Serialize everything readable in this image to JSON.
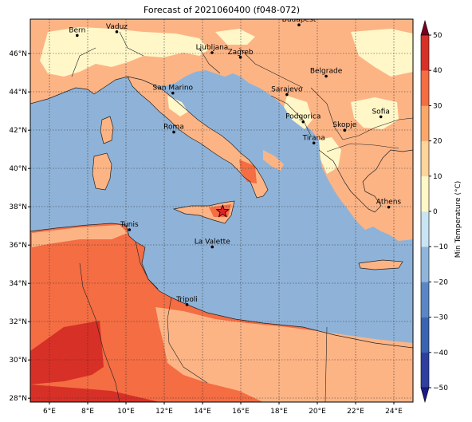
{
  "title": "Forecast of 2021060400 (f048-072)",
  "map": {
    "lon_ticks": [
      "6°E",
      "8°E",
      "10°E",
      "12°E",
      "14°E",
      "16°E",
      "18°E",
      "20°E",
      "22°E",
      "24°E"
    ],
    "lat_ticks": [
      "28°N",
      "30°N",
      "32°N",
      "34°N",
      "36°N",
      "38°N",
      "40°N",
      "42°N",
      "44°N",
      "46°N"
    ],
    "extent": {
      "lon_min": 5,
      "lon_max": 25,
      "lat_min": 27.8,
      "lat_max": 47.8
    },
    "grid": true,
    "cities": [
      {
        "name": "Bern",
        "lon": 7.45,
        "lat": 46.95
      },
      {
        "name": "Vaduz",
        "lon": 9.52,
        "lat": 47.14
      },
      {
        "name": "Budapest",
        "lon": 19.04,
        "lat": 47.5
      },
      {
        "name": "Ljubljana",
        "lon": 14.5,
        "lat": 46.05
      },
      {
        "name": "Zagreb",
        "lon": 15.98,
        "lat": 45.81
      },
      {
        "name": "Belgrade",
        "lon": 20.46,
        "lat": 44.82
      },
      {
        "name": "San Marino",
        "lon": 12.45,
        "lat": 43.94
      },
      {
        "name": "Sarajevo",
        "lon": 18.41,
        "lat": 43.86
      },
      {
        "name": "Sofia",
        "lon": 23.32,
        "lat": 42.7
      },
      {
        "name": "Roma",
        "lon": 12.5,
        "lat": 41.9
      },
      {
        "name": "Podgorica",
        "lon": 19.26,
        "lat": 42.44
      },
      {
        "name": "Skopje",
        "lon": 21.43,
        "lat": 42.0
      },
      {
        "name": "Tirana",
        "lon": 19.82,
        "lat": 41.33
      },
      {
        "name": "Athens",
        "lon": 23.73,
        "lat": 37.98
      },
      {
        "name": "Tunis",
        "lon": 10.18,
        "lat": 36.8
      },
      {
        "name": "La Valette",
        "lon": 14.51,
        "lat": 35.9
      },
      {
        "name": "Tripoli",
        "lon": 13.19,
        "lat": 32.89
      }
    ],
    "marker": {
      "symbol": "star",
      "lon": 15.05,
      "lat": 37.75,
      "color": "#e0202a"
    }
  },
  "colorbar": {
    "label": "Min Temperature (°C)",
    "ticks": [
      "−50",
      "−40",
      "−30",
      "−20",
      "−10",
      "0",
      "10",
      "20",
      "30",
      "40",
      "50"
    ],
    "colors": [
      "#1a1a8a",
      "#2e3fa0",
      "#3a64b0",
      "#5b86c4",
      "#8fb5da",
      "#c9e4f2",
      "#fff7c8",
      "#fdd49a",
      "#fca76a",
      "#f46d43",
      "#d73027",
      "#a50026",
      "#7a0020"
    ]
  },
  "palette": {
    "sea": "#8fb3d8",
    "land_cool": "#fff7c8",
    "land_mild": "#fdb485",
    "land_warm": "#f46d43",
    "land_hot": "#d73027"
  }
}
